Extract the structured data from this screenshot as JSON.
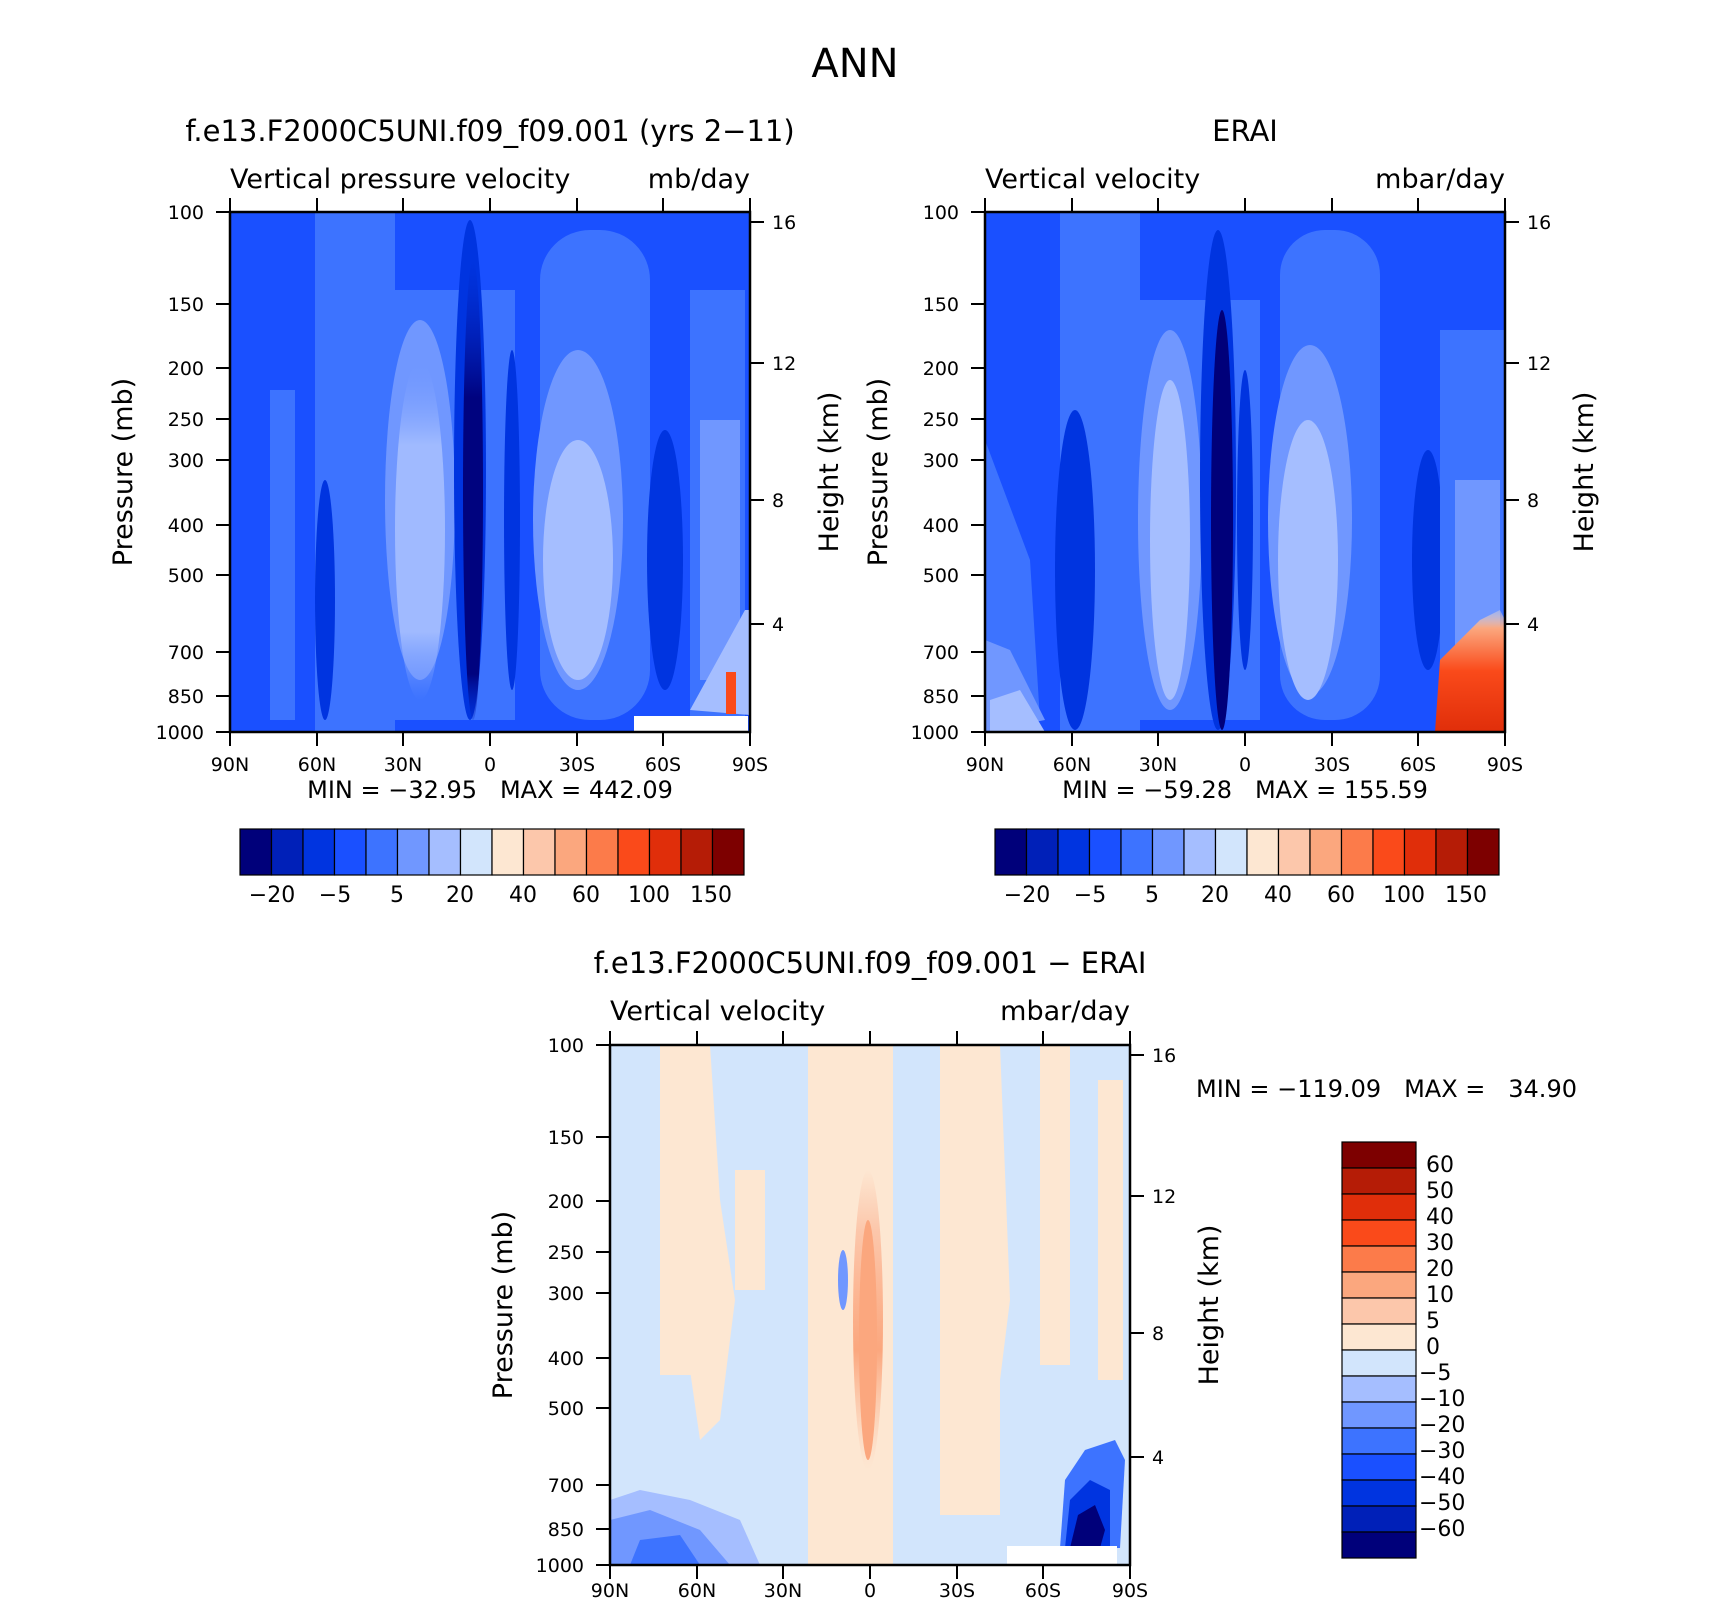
{
  "figure_title": "ANN",
  "colors": {
    "seq16": [
      "#00007a",
      "#0020b8",
      "#0034e0",
      "#1a50ff",
      "#3d73ff",
      "#7097ff",
      "#a5beff",
      "#d2e5fc",
      "#fde7d2",
      "#fcc7ab",
      "#fba77e",
      "#fc7b4a",
      "#fa4a1a",
      "#e02e0a",
      "#b51c06",
      "#7d0000"
    ],
    "diff16": [
      "#00007a",
      "#0020b8",
      "#0034e0",
      "#1a50ff",
      "#3d73ff",
      "#7097ff",
      "#a5beff",
      "#d2e5fc",
      "#fde7d2",
      "#fcc7ab",
      "#fba77e",
      "#fc7b4a",
      "#fa4a1a",
      "#e02e0a",
      "#b51c06",
      "#7d0000"
    ],
    "white_mask": "#ffffff"
  },
  "chart_data": [
    {
      "type": "heatmap",
      "title": "f.e13.F2000C5UNI.f09_f09.001 (yrs 2−11)",
      "subtitle_left": "Vertical pressure velocity",
      "subtitle_right": "mb/day",
      "ylabel": "Pressure (mb)",
      "ylabel_right": "Height (km)",
      "x_ticks": [
        "90N",
        "60N",
        "30N",
        "0",
        "30S",
        "60S",
        "90S"
      ],
      "x_values": [
        90,
        60,
        30,
        0,
        -30,
        -60,
        -90
      ],
      "xlim": [
        90,
        -90
      ],
      "y_ticks": [
        "100",
        "150",
        "200",
        "250",
        "300",
        "400",
        "500",
        "700",
        "850",
        "1000"
      ],
      "y_values": [
        100,
        150,
        200,
        250,
        300,
        400,
        500,
        700,
        850,
        1000
      ],
      "ylim": [
        1000,
        100
      ],
      "y_scale": "log",
      "y_right_ticks": [
        "16",
        "12",
        "8",
        "4"
      ],
      "y_right_values": [
        16,
        12,
        8,
        4
      ],
      "min_max_text": "MIN = −32.95   MAX = 442.09",
      "min": -32.95,
      "max": 442.09,
      "colorbar": {
        "orientation": "horizontal",
        "labels": [
          "−20",
          "−5",
          "5",
          "20",
          "40",
          "60",
          "100",
          "150"
        ]
      }
    },
    {
      "type": "heatmap",
      "title": "ERAI",
      "subtitle_left": "Vertical velocity",
      "subtitle_right": "mbar/day",
      "ylabel": "Pressure (mb)",
      "ylabel_right": "Height (km)",
      "x_ticks": [
        "90N",
        "60N",
        "30N",
        "0",
        "30S",
        "60S",
        "90S"
      ],
      "x_values": [
        90,
        60,
        30,
        0,
        -30,
        -60,
        -90
      ],
      "xlim": [
        90,
        -90
      ],
      "y_ticks": [
        "100",
        "150",
        "200",
        "250",
        "300",
        "400",
        "500",
        "700",
        "850",
        "1000"
      ],
      "y_values": [
        100,
        150,
        200,
        250,
        300,
        400,
        500,
        700,
        850,
        1000
      ],
      "ylim": [
        1000,
        100
      ],
      "y_scale": "log",
      "y_right_ticks": [
        "16",
        "12",
        "8",
        "4"
      ],
      "y_right_values": [
        16,
        12,
        8,
        4
      ],
      "min_max_text": "MIN = −59.28   MAX = 155.59",
      "min": -59.28,
      "max": 155.59,
      "colorbar": {
        "orientation": "horizontal",
        "labels": [
          "−20",
          "−5",
          "5",
          "20",
          "40",
          "60",
          "100",
          "150"
        ]
      }
    },
    {
      "type": "heatmap",
      "title": "f.e13.F2000C5UNI.f09_f09.001 − ERAI",
      "subtitle_left": "Vertical velocity",
      "subtitle_right": "mbar/day",
      "ylabel": "Pressure (mb)",
      "ylabel_right": "Height (km)",
      "x_ticks": [
        "90N",
        "60N",
        "30N",
        "0",
        "30S",
        "60S",
        "90S"
      ],
      "x_values": [
        90,
        60,
        30,
        0,
        -30,
        -60,
        -90
      ],
      "xlim": [
        90,
        -90
      ],
      "y_ticks": [
        "100",
        "150",
        "200",
        "250",
        "300",
        "400",
        "500",
        "700",
        "850",
        "1000"
      ],
      "y_values": [
        100,
        150,
        200,
        250,
        300,
        400,
        500,
        700,
        850,
        1000
      ],
      "ylim": [
        1000,
        100
      ],
      "y_scale": "log",
      "y_right_ticks": [
        "16",
        "12",
        "8",
        "4"
      ],
      "y_right_values": [
        16,
        12,
        8,
        4
      ],
      "min_max_text": "MIN = −119.09   MAX =   34.90",
      "min": -119.09,
      "max": 34.9,
      "colorbar": {
        "orientation": "vertical",
        "labels": [
          "60",
          "50",
          "40",
          "30",
          "20",
          "10",
          "5",
          "0",
          "−5",
          "−10",
          "−20",
          "−30",
          "−40",
          "−50",
          "−60"
        ]
      }
    }
  ]
}
